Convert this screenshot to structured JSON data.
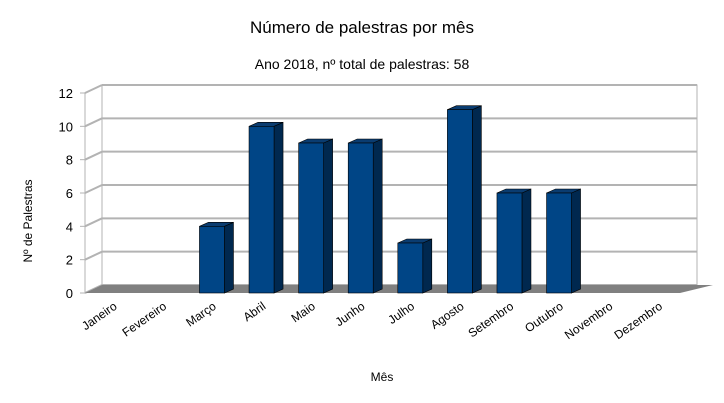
{
  "chart_data": {
    "type": "bar",
    "title": "Número de palestras por mês",
    "subtitle": "Ano 2018, nº total de palestras: 58",
    "xlabel": "Mês",
    "ylabel": "Nº de Palestras",
    "categories": [
      "Janeiro",
      "Fevereiro",
      "Março",
      "Abril",
      "Maio",
      "Junho",
      "Julho",
      "Agosto",
      "Setembro",
      "Outubro",
      "Novembro",
      "Dezembro"
    ],
    "values": [
      0,
      0,
      4,
      10,
      9,
      9,
      3,
      11,
      6,
      6,
      0,
      0
    ],
    "ylim": [
      0,
      12
    ],
    "yticks": [
      0,
      2,
      4,
      6,
      8,
      10,
      12
    ],
    "grid": true,
    "legend": "none",
    "colors": {
      "bar_front": "#004586",
      "bar_side": "#00284f",
      "bar_top": "#0a3c70",
      "floor": "#808080",
      "grid": "#b3b3b3"
    }
  }
}
